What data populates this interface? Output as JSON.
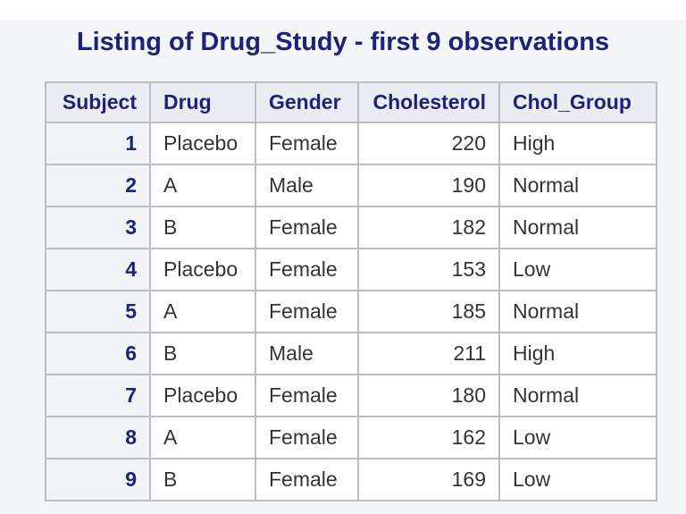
{
  "page": {
    "background_color": "#f4f5f9",
    "top_strip_color": "#ffffff"
  },
  "title": "Listing of Drug_Study - first 9 observations",
  "colors": {
    "title_text": "#1c2276",
    "header_text": "#1c2276",
    "header_background": "#ebecf1",
    "row_header_background": "#f2f3f7",
    "cell_background": "#ffffff",
    "data_text": "#333333",
    "border": "#bcbdc1"
  },
  "table": {
    "columns": [
      {
        "label": "Subject",
        "align": "right",
        "role": "rowheader"
      },
      {
        "label": "Drug",
        "align": "left",
        "role": "data"
      },
      {
        "label": "Gender",
        "align": "left",
        "role": "data"
      },
      {
        "label": "Cholesterol",
        "align": "right",
        "role": "data"
      },
      {
        "label": "Chol_Group",
        "align": "left",
        "role": "data"
      }
    ],
    "rows": [
      [
        "1",
        "Placebo",
        "Female",
        "220",
        "High"
      ],
      [
        "2",
        "A",
        "Male",
        "190",
        "Normal"
      ],
      [
        "3",
        "B",
        "Female",
        "182",
        "Normal"
      ],
      [
        "4",
        "Placebo",
        "Female",
        "153",
        "Low"
      ],
      [
        "5",
        "A",
        "Female",
        "185",
        "Normal"
      ],
      [
        "6",
        "B",
        "Male",
        "211",
        "High"
      ],
      [
        "7",
        "Placebo",
        "Female",
        "180",
        "Normal"
      ],
      [
        "8",
        "A",
        "Female",
        "162",
        "Low"
      ],
      [
        "9",
        "B",
        "Female",
        "169",
        "Low"
      ]
    ]
  }
}
